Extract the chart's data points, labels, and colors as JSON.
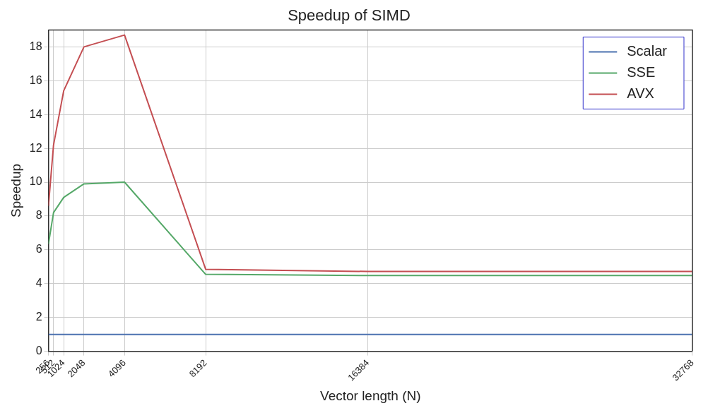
{
  "chart_data": {
    "type": "line",
    "title": "Speedup of SIMD",
    "xlabel": "Vector length (N)",
    "ylabel": "Speedup",
    "x": [
      256,
      512,
      1024,
      2048,
      4096,
      8192,
      16384,
      32768
    ],
    "series": [
      {
        "name": "Scalar",
        "color": "#4c72b0",
        "values": [
          1,
          1,
          1,
          1,
          1,
          1,
          1,
          1
        ]
      },
      {
        "name": "SSE",
        "color": "#55a868",
        "values": [
          6.35,
          8.2,
          9.1,
          9.9,
          10.0,
          4.55,
          4.48,
          4.48
        ]
      },
      {
        "name": "AVX",
        "color": "#c44e52",
        "values": [
          8.6,
          12.2,
          15.4,
          18.0,
          18.7,
          4.85,
          4.72,
          4.72
        ]
      }
    ],
    "xlim": [
      256,
      32768
    ],
    "xticks": [
      256,
      512,
      1024,
      2048,
      4096,
      8192,
      16384,
      32768
    ],
    "ylim": [
      0,
      19
    ],
    "yticks": [
      0,
      2,
      4,
      6,
      8,
      10,
      12,
      14,
      16,
      18
    ],
    "grid": true,
    "legend": "top right",
    "marker": "none",
    "line_style": "solid"
  }
}
